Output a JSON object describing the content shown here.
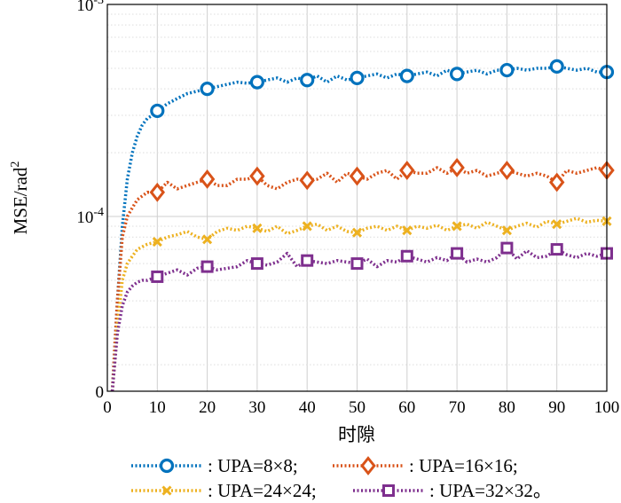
{
  "chart_data": {
    "type": "line",
    "title": "",
    "xlabel": "时隙",
    "ylabel": "MSE/rad",
    "ylabel_superscript": "2",
    "xlim": [
      0,
      100
    ],
    "y_scale": "log",
    "ylim_note": "log scale, bottom tick labeled 0 (≈1.5e-5), top 1e-3",
    "ylim": [
      1.5e-05,
      0.001
    ],
    "x_ticks": [
      "0",
      "10",
      "20",
      "30",
      "40",
      "50",
      "60",
      "70",
      "80",
      "90",
      "100"
    ],
    "y_ticks": [
      {
        "value": 0.001,
        "base": "10",
        "exp": "-3"
      },
      {
        "value": 0.0001,
        "base": "10",
        "exp": "-4"
      },
      {
        "value": 1.5e-05,
        "base": "0",
        "exp": ""
      }
    ],
    "grid": true,
    "legend_position": "bottom",
    "series": [
      {
        "name": "UPA=8×8;",
        "legend_label": ": UPA=8×8;",
        "color": "#0072BD",
        "marker": "circle",
        "x": [
          1,
          2,
          3,
          4,
          5,
          6,
          7,
          8,
          9,
          10,
          12,
          14,
          16,
          18,
          20,
          22,
          24,
          26,
          28,
          30,
          32,
          34,
          36,
          38,
          40,
          42,
          44,
          46,
          48,
          50,
          52,
          54,
          56,
          58,
          60,
          62,
          64,
          66,
          68,
          70,
          72,
          74,
          76,
          78,
          80,
          82,
          84,
          86,
          88,
          90,
          92,
          94,
          96,
          98,
          100
        ],
        "y": [
          1.5e-05,
          4e-05,
          9e-05,
          0.00015,
          0.0002,
          0.00024,
          0.00027,
          0.00029,
          0.0003,
          0.000315,
          0.00034,
          0.00036,
          0.00038,
          0.00039,
          0.0004,
          0.00041,
          0.00042,
          0.00043,
          0.000425,
          0.00043,
          0.00044,
          0.00045,
          0.00043,
          0.00045,
          0.00044,
          0.00046,
          0.00043,
          0.00046,
          0.00044,
          0.00045,
          0.00046,
          0.00047,
          0.00045,
          0.00047,
          0.00046,
          0.00047,
          0.00048,
          0.00046,
          0.00049,
          0.00047,
          0.00048,
          0.00049,
          0.00047,
          0.00049,
          0.00049,
          0.0005,
          0.00049,
          0.0005,
          0.0005,
          0.00051,
          0.0005,
          0.00049,
          0.0005,
          0.00048,
          0.00048
        ],
        "marker_x": [
          10,
          20,
          30,
          40,
          50,
          60,
          70,
          80,
          90,
          100
        ],
        "marker_y": [
          0.000315,
          0.0004,
          0.00043,
          0.00044,
          0.00045,
          0.00046,
          0.00047,
          0.00049,
          0.00051,
          0.00048
        ]
      },
      {
        "name": "UPA=16×16;",
        "legend_label": ": UPA=16×16;",
        "color": "#D95319",
        "marker": "diamond",
        "x": [
          1,
          2,
          3,
          4,
          5,
          6,
          7,
          8,
          9,
          10,
          12,
          14,
          16,
          18,
          20,
          22,
          24,
          26,
          28,
          30,
          32,
          34,
          36,
          38,
          40,
          42,
          44,
          46,
          48,
          50,
          52,
          54,
          56,
          58,
          60,
          62,
          64,
          66,
          68,
          70,
          72,
          74,
          76,
          78,
          80,
          82,
          84,
          86,
          88,
          90,
          92,
          94,
          96,
          98,
          100
        ],
        "y": [
          1.5e-05,
          4e-05,
          8e-05,
          0.0001,
          0.00011,
          0.00012,
          0.000125,
          0.00013,
          0.00013,
          0.00013,
          0.000145,
          0.000135,
          0.00014,
          0.000145,
          0.00015,
          0.00014,
          0.00014,
          0.00015,
          0.00015,
          0.000155,
          0.00014,
          0.000135,
          0.000145,
          0.00015,
          0.000148,
          0.00015,
          0.00016,
          0.000145,
          0.00016,
          0.000155,
          0.00015,
          0.00016,
          0.000165,
          0.00015,
          0.000165,
          0.00016,
          0.00016,
          0.00017,
          0.00016,
          0.00017,
          0.00016,
          0.000165,
          0.000155,
          0.00016,
          0.000165,
          0.00016,
          0.000155,
          0.00016,
          0.000155,
          0.000145,
          0.000165,
          0.00016,
          0.000165,
          0.00017,
          0.000165
        ],
        "marker_x": [
          10,
          20,
          30,
          40,
          50,
          60,
          70,
          80,
          90,
          100
        ],
        "marker_y": [
          0.00013,
          0.00015,
          0.000155,
          0.000148,
          0.000155,
          0.000165,
          0.00017,
          0.000165,
          0.000145,
          0.000165
        ]
      },
      {
        "name": "UPA=24×24;",
        "legend_label": ": UPA=24×24;",
        "color": "#EDB120",
        "marker": "x",
        "x": [
          1,
          2,
          3,
          4,
          5,
          6,
          7,
          8,
          9,
          10,
          12,
          14,
          16,
          18,
          20,
          22,
          24,
          26,
          28,
          30,
          32,
          34,
          36,
          38,
          40,
          42,
          44,
          46,
          48,
          50,
          52,
          54,
          56,
          58,
          60,
          62,
          64,
          66,
          68,
          70,
          72,
          74,
          76,
          78,
          80,
          82,
          84,
          86,
          88,
          90,
          92,
          94,
          96,
          98,
          100
        ],
        "y": [
          1.5e-05,
          3e-05,
          5e-05,
          6e-05,
          6.5e-05,
          7e-05,
          7.2e-05,
          7.4e-05,
          7.5e-05,
          7.6e-05,
          8e-05,
          8.2e-05,
          8.5e-05,
          8e-05,
          7.8e-05,
          8.5e-05,
          8.8e-05,
          8.6e-05,
          9e-05,
          8.8e-05,
          8.5e-05,
          9e-05,
          8.3e-05,
          8.6e-05,
          9e-05,
          9.2e-05,
          8.6e-05,
          9e-05,
          8.5e-05,
          8.4e-05,
          8.8e-05,
          9e-05,
          8.6e-05,
          9e-05,
          8.6e-05,
          9e-05,
          8.8e-05,
          9.1e-05,
          8.6e-05,
          9e-05,
          9.2e-05,
          8.8e-05,
          9.4e-05,
          9e-05,
          8.6e-05,
          9e-05,
          9.3e-05,
          8.9e-05,
          9.5e-05,
          9.2e-05,
          9.5e-05,
          9.8e-05,
          9.4e-05,
          9.6e-05,
          9.5e-05
        ],
        "marker_x": [
          10,
          20,
          30,
          40,
          50,
          60,
          70,
          80,
          90,
          100
        ],
        "marker_y": [
          7.6e-05,
          7.8e-05,
          8.8e-05,
          9e-05,
          8.4e-05,
          8.6e-05,
          9e-05,
          8.6e-05,
          9.2e-05,
          9.5e-05
        ]
      },
      {
        "name": "UPA=32×32。",
        "legend_label": ": UPA=32×32。",
        "color": "#7E2F8E",
        "marker": "square",
        "x": [
          1,
          2,
          3,
          4,
          5,
          6,
          7,
          8,
          9,
          10,
          12,
          14,
          16,
          18,
          20,
          22,
          24,
          26,
          28,
          30,
          32,
          34,
          36,
          38,
          40,
          42,
          44,
          46,
          48,
          50,
          52,
          54,
          56,
          58,
          60,
          62,
          64,
          66,
          68,
          70,
          72,
          74,
          76,
          78,
          80,
          82,
          84,
          86,
          88,
          90,
          92,
          94,
          96,
          98,
          100
        ],
        "y": [
          1.5e-05,
          2.8e-05,
          3.8e-05,
          4.4e-05,
          4.7e-05,
          4.9e-05,
          5e-05,
          5e-05,
          5.1e-05,
          5.2e-05,
          5.4e-05,
          5.6e-05,
          5.3e-05,
          5.7e-05,
          5.8e-05,
          5.6e-05,
          5.7e-05,
          5.8e-05,
          6.2e-05,
          6e-05,
          5.9e-05,
          6.1e-05,
          6.7e-05,
          5.8e-05,
          6.2e-05,
          6.1e-05,
          6e-05,
          6.2e-05,
          6.1e-05,
          6e-05,
          6.3e-05,
          5.8e-05,
          6.2e-05,
          6.1e-05,
          6.5e-05,
          6.3e-05,
          6.1e-05,
          6.4e-05,
          6.2e-05,
          6.7e-05,
          6.1e-05,
          6.3e-05,
          6.1e-05,
          6.4e-05,
          7.1e-05,
          6.3e-05,
          6.9e-05,
          6.4e-05,
          6.5e-05,
          7e-05,
          6.6e-05,
          6.4e-05,
          6.7e-05,
          6.5e-05,
          6.7e-05
        ],
        "marker_x": [
          10,
          20,
          30,
          40,
          50,
          60,
          70,
          80,
          90,
          100
        ],
        "marker_y": [
          5.2e-05,
          5.8e-05,
          6e-05,
          6.2e-05,
          6e-05,
          6.5e-05,
          6.7e-05,
          7.1e-05,
          7e-05,
          6.7e-05
        ]
      }
    ]
  }
}
